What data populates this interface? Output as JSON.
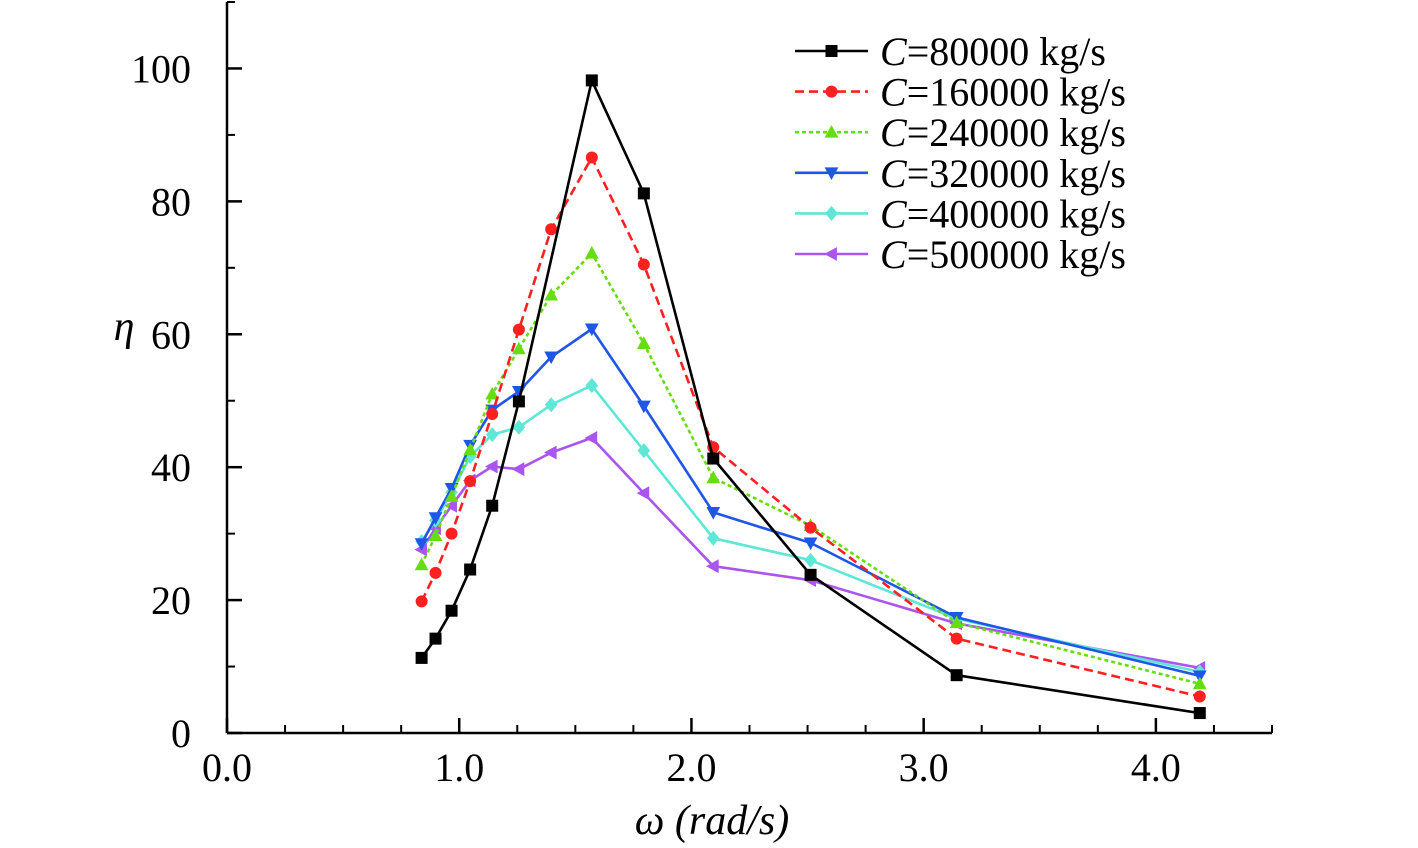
{
  "chart_data": {
    "type": "line",
    "title": "",
    "xlabel": "ω (rad/s)",
    "ylabel": "η",
    "xlim": [
      0,
      4.5
    ],
    "ylim": [
      0,
      110
    ],
    "x_ticks": [
      0,
      1,
      2,
      3,
      4
    ],
    "x_tick_labels": [
      "0.0",
      "1.0",
      "2.0",
      "3.0",
      "4.0"
    ],
    "y_ticks": [
      0,
      20,
      40,
      60,
      80,
      100
    ],
    "y_tick_labels": [
      "0",
      "20",
      "40",
      "60",
      "80",
      "100"
    ],
    "x_minor_step": 0.25,
    "y_minor_step": 10,
    "grid": false,
    "legend_position": "top-right",
    "series": [
      {
        "name": "C=80000 kg/s",
        "label_var": "C",
        "label_rest": "=80000 kg/s",
        "color": "#000000",
        "marker": "square",
        "dash": "solid",
        "x": [
          0.838,
          0.898,
          0.967,
          1.047,
          1.142,
          1.257,
          1.571,
          1.795,
          2.094,
          2.513,
          3.142,
          4.189
        ],
        "y": [
          11.3,
          14.2,
          18.4,
          24.6,
          34.2,
          49.9,
          98.2,
          81.2,
          41.3,
          23.8,
          8.7,
          3.0
        ]
      },
      {
        "name": "C=160000 kg/s",
        "label_var": "C",
        "label_rest": "=160000 kg/s",
        "color": "#ff2020",
        "marker": "circle",
        "dash": "dashed",
        "x": [
          0.838,
          0.898,
          0.967,
          1.047,
          1.142,
          1.257,
          1.396,
          1.571,
          1.795,
          2.094,
          2.513,
          3.142,
          4.189
        ],
        "y": [
          19.8,
          24.1,
          30.0,
          37.9,
          48.0,
          60.7,
          75.8,
          86.6,
          70.5,
          43.0,
          30.9,
          14.2,
          5.5
        ]
      },
      {
        "name": "C=240000 kg/s",
        "label_var": "C",
        "label_rest": "=240000 kg/s",
        "color": "#66dd11",
        "marker": "triangle-up",
        "dash": "dotted",
        "x": [
          0.838,
          0.898,
          0.967,
          1.047,
          1.142,
          1.257,
          1.396,
          1.571,
          1.795,
          2.094,
          2.513,
          3.142,
          4.189
        ],
        "y": [
          25.3,
          29.7,
          35.6,
          42.6,
          51.0,
          57.8,
          65.9,
          72.2,
          58.6,
          38.4,
          31.2,
          16.6,
          7.4
        ]
      },
      {
        "name": "C=320000 kg/s",
        "label_var": "C",
        "label_rest": "=320000 kg/s",
        "color": "#1e56e8",
        "marker": "triangle-down",
        "dash": "solid",
        "x": [
          0.838,
          0.898,
          0.967,
          1.047,
          1.142,
          1.257,
          1.396,
          1.571,
          1.795,
          2.094,
          2.513,
          3.142,
          4.189
        ],
        "y": [
          28.5,
          32.4,
          36.8,
          43.3,
          48.6,
          51.4,
          56.6,
          60.8,
          49.2,
          33.2,
          28.6,
          17.4,
          8.6
        ]
      },
      {
        "name": "C=400000 kg/s",
        "label_var": "C",
        "label_rest": "=400000 kg/s",
        "color": "#5ee6d6",
        "marker": "diamond",
        "dash": "solid",
        "x": [
          0.838,
          0.898,
          0.967,
          1.047,
          1.142,
          1.257,
          1.396,
          1.571,
          1.795,
          2.094,
          2.513,
          3.142,
          4.189
        ],
        "y": [
          28.8,
          32.0,
          36.2,
          41.6,
          44.9,
          46.0,
          49.4,
          52.3,
          42.5,
          29.3,
          26.0,
          17.2,
          9.2
        ]
      },
      {
        "name": "C=500000 kg/s",
        "label_var": "C",
        "label_rest": "=500000 kg/s",
        "color": "#aa55ee",
        "marker": "triangle-left",
        "dash": "solid",
        "x": [
          0.838,
          0.898,
          0.967,
          1.047,
          1.142,
          1.257,
          1.396,
          1.571,
          1.795,
          2.094,
          2.513,
          3.142,
          4.189
        ],
        "y": [
          27.6,
          30.8,
          34.2,
          38.0,
          40.1,
          39.7,
          42.2,
          44.4,
          36.1,
          25.1,
          23.0,
          16.5,
          9.8
        ]
      }
    ]
  }
}
